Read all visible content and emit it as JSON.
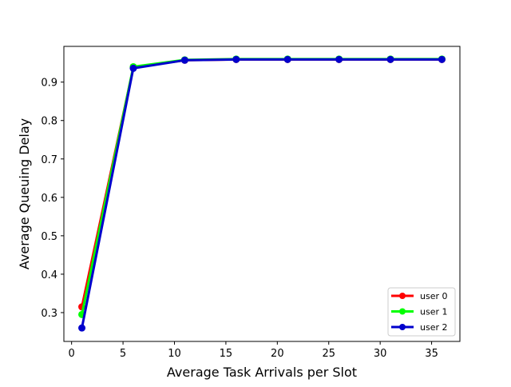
{
  "chart_data": {
    "type": "line",
    "title": "",
    "xlabel": "Average Task Arrivals per Slot",
    "ylabel": "Average Queuing Delay",
    "xlim": [
      -0.75,
      37.75
    ],
    "ylim": [
      0.225,
      0.993
    ],
    "xticks": [
      0,
      5,
      10,
      15,
      20,
      25,
      30,
      35
    ],
    "yticks": [
      0.3,
      0.4,
      0.5,
      0.6,
      0.7,
      0.8,
      0.9
    ],
    "grid": false,
    "legend_position": "lower-right",
    "x": [
      1,
      6,
      11,
      16,
      21,
      26,
      31,
      36
    ],
    "series": [
      {
        "name": "user 0",
        "color": "#ff0000",
        "values": [
          0.315,
          0.938,
          0.957,
          0.959,
          0.959,
          0.959,
          0.959,
          0.959
        ]
      },
      {
        "name": "user 1",
        "color": "#00ff00",
        "values": [
          0.295,
          0.94,
          0.958,
          0.96,
          0.96,
          0.96,
          0.96,
          0.96
        ]
      },
      {
        "name": "user 2",
        "color": "#0000cc",
        "values": [
          0.26,
          0.936,
          0.957,
          0.959,
          0.959,
          0.959,
          0.959,
          0.959
        ]
      }
    ]
  }
}
